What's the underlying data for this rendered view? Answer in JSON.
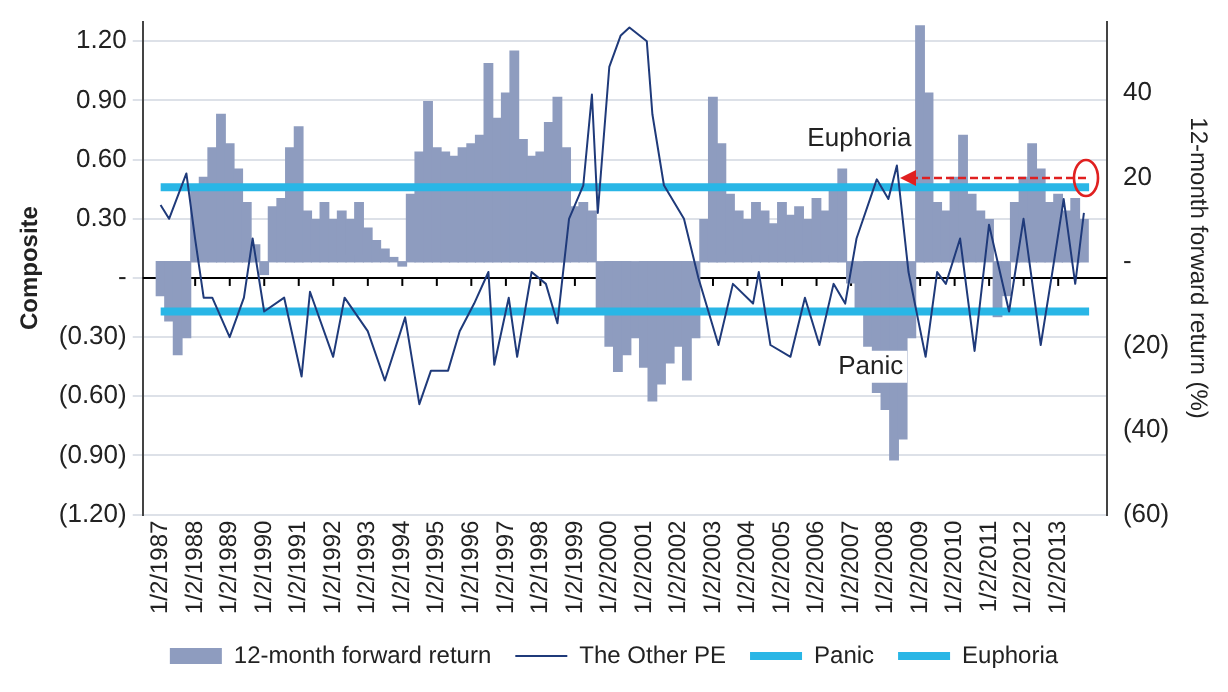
{
  "chart_data": {
    "type": "bar",
    "ylabel": "Composite",
    "y2label": "12-month forward return (%)",
    "xlim": [
      "1987-01-01",
      "2013-11-25"
    ],
    "xticks": [
      {
        "value": "1987-01-02",
        "label": "1/2/1987"
      },
      {
        "value": "1988-01-02",
        "label": "1/2/1988"
      },
      {
        "value": "1989-01-02",
        "label": "1/2/1989"
      },
      {
        "value": "1990-01-02",
        "label": "1/2/1990"
      },
      {
        "value": "1991-01-02",
        "label": "1/2/1991"
      },
      {
        "value": "1992-01-02",
        "label": "1/2/1992"
      },
      {
        "value": "1993-01-02",
        "label": "1/2/1993"
      },
      {
        "value": "1994-01-02",
        "label": "1/2/1994"
      },
      {
        "value": "1995-01-02",
        "label": "1/2/1995"
      },
      {
        "value": "1996-01-02",
        "label": "1/2/1996"
      },
      {
        "value": "1997-01-02",
        "label": "1/2/1997"
      },
      {
        "value": "1998-01-02",
        "label": "1/2/1998"
      },
      {
        "value": "1999-01-02",
        "label": "1/2/1999"
      },
      {
        "value": "2000-01-02",
        "label": "1/2/2000"
      },
      {
        "value": "2001-01-02",
        "label": "1/2/2001"
      },
      {
        "value": "2002-01-02",
        "label": "1/2/2002"
      },
      {
        "value": "2003-01-02",
        "label": "1/2/2003"
      },
      {
        "value": "2004-01-02",
        "label": "1/2/2004"
      },
      {
        "value": "2005-01-02",
        "label": "1/2/2005"
      },
      {
        "value": "2006-01-02",
        "label": "1/2/2006"
      },
      {
        "value": "2007-01-02",
        "label": "1/2/2007"
      },
      {
        "value": "2008-01-02",
        "label": "1/2/2008"
      },
      {
        "value": "2009-01-02",
        "label": "1/2/2009"
      },
      {
        "value": "2010-01-02",
        "label": "1/2/2010"
      },
      {
        "value": "2011-01-02",
        "label": "1/2/2011"
      },
      {
        "value": "2012-01-02",
        "label": "1/2/2012"
      },
      {
        "value": "2013-01-02",
        "label": "1/2/2013"
      }
    ],
    "ylim": [
      -1.2,
      1.3
    ],
    "yticks": [
      {
        "value": -1.2,
        "label": "(1.20)"
      },
      {
        "value": -0.9,
        "label": "(0.90)"
      },
      {
        "value": -0.6,
        "label": "(0.60)"
      },
      {
        "value": -0.3,
        "label": "(0.30)"
      },
      {
        "value": 0,
        "label": "-"
      },
      {
        "value": 0.3,
        "label": "0.30"
      },
      {
        "value": 0.6,
        "label": "0.60"
      },
      {
        "value": 0.9,
        "label": "0.90"
      },
      {
        "value": 1.2,
        "label": "1.20"
      }
    ],
    "y2lim": [
      -60,
      57
    ],
    "y2ticks": [
      {
        "value": -60,
        "label": "(60)"
      },
      {
        "value": -40,
        "label": "(40)"
      },
      {
        "value": -20,
        "label": "(20)"
      },
      {
        "value": 0,
        "label": "-"
      },
      20,
      40
    ],
    "grid": "y",
    "legend": "bottom",
    "ref_lines": [
      {
        "axis": "y",
        "value": 0,
        "color": "#000000"
      }
    ],
    "annotations": [
      {
        "text": "Euphoria",
        "x": "2008-04-15",
        "y": 0.46
      },
      "Panic"
    ],
    "series": [
      {
        "name": "12-month forward return",
        "axis": "y2",
        "color": "#8e9cbf",
        "x": [
          "1987-01",
          "1987-04",
          "1987-07",
          "1987-10",
          "1988-01",
          "1988-04",
          "1988-07",
          "1988-10",
          "1989-01",
          "1989-04",
          "1989-07",
          "1989-10",
          "1990-01",
          "1990-04",
          "1990-07",
          "1990-10",
          "1991-01",
          "1991-04",
          "1991-07",
          "1991-10",
          "1992-01",
          "1992-04",
          "1992-07",
          "1992-10",
          "1993-01",
          "1993-04",
          "1993-07",
          "1993-10",
          "1994-01",
          "1994-04",
          "1994-07",
          "1994-10",
          "1995-01",
          "1995-04",
          "1995-07",
          "1995-10",
          "1996-01",
          "1996-04",
          "1996-07",
          "1996-10",
          "1997-01",
          "1997-04",
          "1997-07",
          "1997-10",
          "1998-01",
          "1998-04",
          "1998-07",
          "1998-10",
          "1999-01",
          "1999-04",
          "1999-07",
          "1999-10",
          "2000-01",
          "2000-04",
          "2000-07",
          "2000-10",
          "2001-01",
          "2001-04",
          "2001-07",
          "2001-10",
          "2002-01",
          "2002-04",
          "2002-07",
          "2002-10",
          "2003-01",
          "2003-04",
          "2003-07",
          "2003-10",
          "2004-01",
          "2004-04",
          "2004-07",
          "2004-10",
          "2005-01",
          "2005-04",
          "2005-07",
          "2005-10",
          "2006-01",
          "2006-04",
          "2006-07",
          "2006-10",
          "2007-01",
          "2007-04",
          "2007-07",
          "2007-10",
          "2008-01",
          "2008-04",
          "2008-07",
          "2008-10",
          "2009-01",
          "2009-04",
          "2009-07",
          "2009-10",
          "2010-01",
          "2010-04",
          "2010-07",
          "2010-10",
          "2011-01",
          "2011-04",
          "2011-07",
          "2011-10",
          "2012-01",
          "2012-04",
          "2012-07",
          "2012-10",
          "2013-01",
          "2013-04",
          "2013-07",
          "2013-10"
        ],
        "values": [
          -8,
          -14,
          -22,
          -18,
          17,
          20,
          27,
          35,
          28,
          22,
          14,
          4,
          -3,
          13,
          15,
          27,
          32,
          12,
          10,
          14,
          10,
          12,
          10,
          14,
          8,
          5,
          3,
          1,
          -1,
          16,
          26,
          38,
          27,
          26,
          25,
          27,
          28,
          30,
          47,
          34,
          40,
          50,
          29,
          25,
          26,
          33,
          39,
          27,
          13,
          14,
          12,
          -12,
          -20,
          -26,
          -22,
          -18,
          -25,
          -33,
          -29,
          -24,
          -20,
          -28,
          -18,
          10,
          39,
          28,
          16,
          12,
          10,
          14,
          12,
          9,
          14,
          11,
          13,
          10,
          15,
          12,
          17,
          22,
          -5,
          -12,
          -20,
          -31,
          -35,
          -47,
          -42,
          -18,
          56,
          40,
          14,
          12,
          20,
          30,
          16,
          12,
          10,
          -13,
          -8,
          14,
          20,
          28,
          22,
          14,
          16,
          12,
          15,
          10
        ]
      },
      {
        "name": "The Other PE",
        "type": "line",
        "axis": "y",
        "color": "#1f3a7a",
        "x": [
          "1987-01",
          "1987-04",
          "1987-10",
          "1988-01",
          "1988-04",
          "1988-07",
          "1989-01",
          "1989-06",
          "1989-09",
          "1990-01",
          "1990-08",
          "1991-02",
          "1991-05",
          "1992-01",
          "1992-05",
          "1993-01",
          "1993-07",
          "1994-02",
          "1994-07",
          "1994-11",
          "1995-05",
          "1995-09",
          "1996-02",
          "1996-07",
          "1996-09",
          "1997-02",
          "1997-05",
          "1997-10",
          "1998-03",
          "1998-07",
          "1998-11",
          "1999-04",
          "1999-07",
          "1999-09",
          "2000-01",
          "2000-05",
          "2000-08",
          "2001-02",
          "2001-04",
          "2001-08",
          "2002-03",
          "2002-08",
          "2003-03",
          "2003-08",
          "2004-03",
          "2004-05",
          "2004-09",
          "2005-04",
          "2005-09",
          "2006-02",
          "2006-07",
          "2006-11",
          "2007-03",
          "2007-10",
          "2008-02",
          "2008-05",
          "2008-09",
          "2009-03",
          "2009-07",
          "2009-10",
          "2010-03",
          "2010-08",
          "2011-01",
          "2011-08",
          "2012-01",
          "2012-07",
          "2012-11",
          "2013-03",
          "2013-07",
          "2013-10"
        ],
        "values": [
          0.37,
          0.3,
          0.53,
          0.2,
          -0.1,
          -0.1,
          -0.3,
          -0.1,
          0.2,
          -0.17,
          -0.1,
          -0.5,
          -0.07,
          -0.4,
          -0.1,
          -0.27,
          -0.52,
          -0.2,
          -0.64,
          -0.47,
          -0.47,
          -0.27,
          -0.13,
          0.03,
          -0.44,
          -0.1,
          -0.4,
          0.03,
          -0.03,
          -0.23,
          0.3,
          0.47,
          0.93,
          0.33,
          1.07,
          1.23,
          1.27,
          1.2,
          0.83,
          0.47,
          0.3,
          0,
          -0.34,
          -0.03,
          -0.13,
          0.03,
          -0.34,
          -0.4,
          -0.1,
          -0.34,
          -0.03,
          -0.13,
          0.2,
          0.5,
          0.4,
          0.57,
          0.03,
          -0.4,
          0.03,
          -0.03,
          0.2,
          -0.37,
          0.27,
          -0.17,
          0.3,
          -0.34,
          0.03,
          0.4,
          -0.03,
          0.33
        ]
      },
      {
        "name": "Panic",
        "type": "line",
        "axis": "y",
        "color": "#29b6e6",
        "x": [
          "1987-01-02",
          "2013-11-25"
        ],
        "values": [
          -0.17,
          -0.17
        ]
      },
      {
        "name": "Euphoria",
        "type": "line",
        "axis": "y",
        "color": "#29b6e6",
        "x": [
          "1987-01-02",
          "2013-11-25"
        ],
        "values": [
          0.46,
          0.46
        ]
      }
    ]
  }
}
